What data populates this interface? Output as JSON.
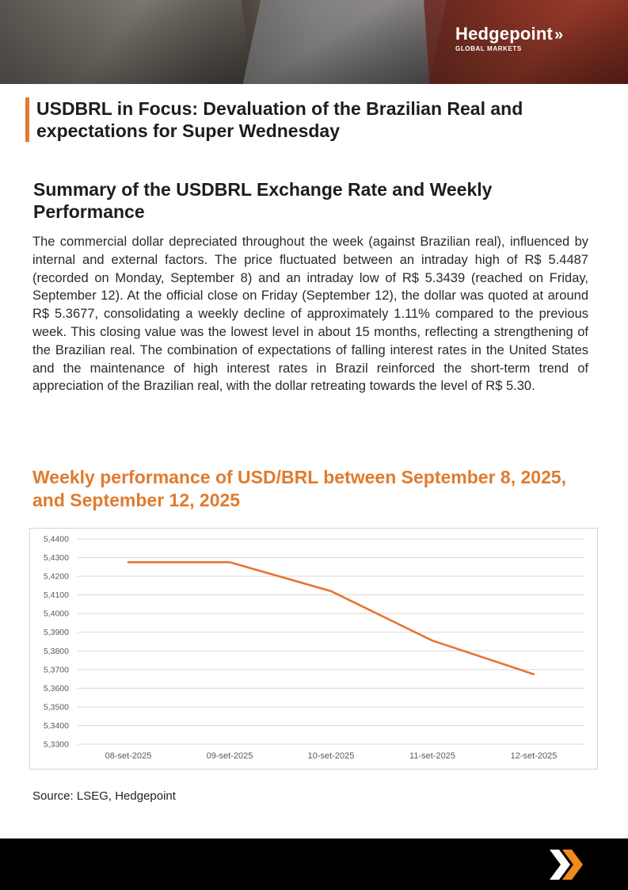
{
  "header": {
    "logo_name": "Hedgepoint",
    "logo_sub": "GLOBAL MARKETS",
    "logo_icon": "double-chevron-icon"
  },
  "article": {
    "title": "USDBRL in Focus: Devaluation of the Brazilian Real and expectations for Super Wednesday",
    "section_heading": "Summary of the USDBRL Exchange Rate and Weekly Performance",
    "body": "The commercial dollar depreciated throughout the week (against Brazilian real), influenced by internal and external factors. The price fluctuated between an intraday high of R$ 5.4487 (recorded on Monday, September 8) and an intraday low of R$ 5.3439 (reached on Friday, September 12). At the official close on Friday (September 12), the dollar was quoted at around R$ 5.3677, consolidating a weekly decline of approximately 1.11% compared to the previous week. This closing value was the lowest level in about 15 months, reflecting a strengthening of the Brazilian real. The combination of expectations of falling interest rates in the United States and the maintenance of high interest rates in Brazil reinforced the short-term trend of appreciation of the Brazilian real, with the dollar retreating towards the level of R$ 5.30.",
    "chart_heading": "Weekly performance of USD/BRL between September 8, 2025, and September 12, 2025",
    "source": "Source: LSEG, Hedgepoint"
  },
  "colors": {
    "accent": "#e07b2f",
    "line": "#e8742f",
    "grid": "#d9d9d9",
    "tick_text": "#595959"
  },
  "chart_data": {
    "type": "line",
    "categories": [
      "08-set-2025",
      "09-set-2025",
      "10-set-2025",
      "11-set-2025",
      "12-set-2025"
    ],
    "values": [
      5.4275,
      5.4275,
      5.412,
      5.3855,
      5.3675
    ],
    "ylim": [
      5.33,
      5.44
    ],
    "yticks": [
      "5,3300",
      "5,3400",
      "5,3500",
      "5,3600",
      "5,3700",
      "5,3800",
      "5,3900",
      "5,4000",
      "5,4100",
      "5,4200",
      "5,4300",
      "5,4400"
    ],
    "grid": true,
    "legend": "none"
  }
}
